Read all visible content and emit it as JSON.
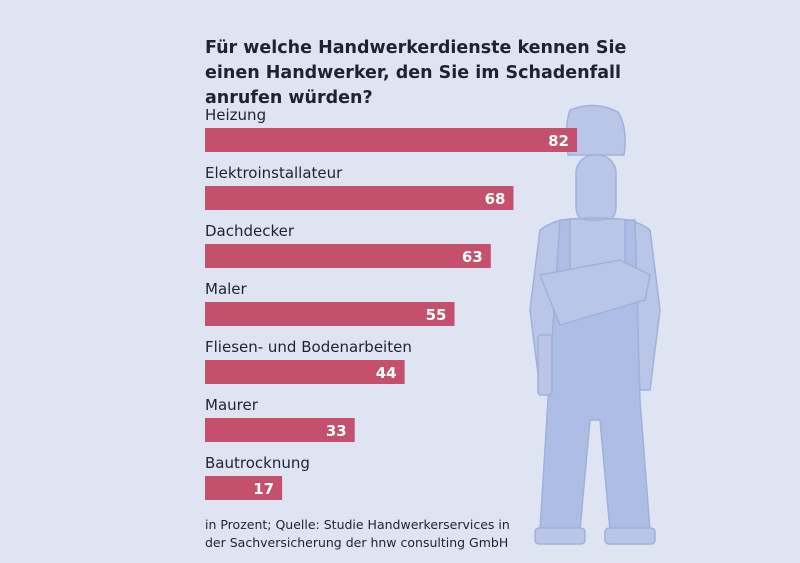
{
  "chart_data": {
    "type": "bar",
    "orientation": "horizontal",
    "title": "Für welche Handwerkerdienste kennen Sie einen Handwerker, den Sie im Schadenfall anrufen würden?",
    "categories": [
      "Heizung",
      "Elektroinstallateur",
      "Dachdecker",
      "Maler",
      "Fliesen- und Bodenarbeiten",
      "Maurer",
      "Bautrocknung"
    ],
    "values": [
      82,
      68,
      63,
      55,
      44,
      33,
      17
    ],
    "unit_note": "in Prozent",
    "xlim": [
      0,
      100
    ],
    "grid": false,
    "data_labels": true,
    "bar_color": "#c4506b",
    "label_color": "#ffffff"
  },
  "footer": {
    "line1": "in Prozent; Quelle: Studie Handwerkerservices in",
    "line2": "der Sachversicherung der hnw consulting GmbH"
  },
  "background_color": "#dfe4f2",
  "illustration": "craftsman-in-overalls-with-helmet"
}
